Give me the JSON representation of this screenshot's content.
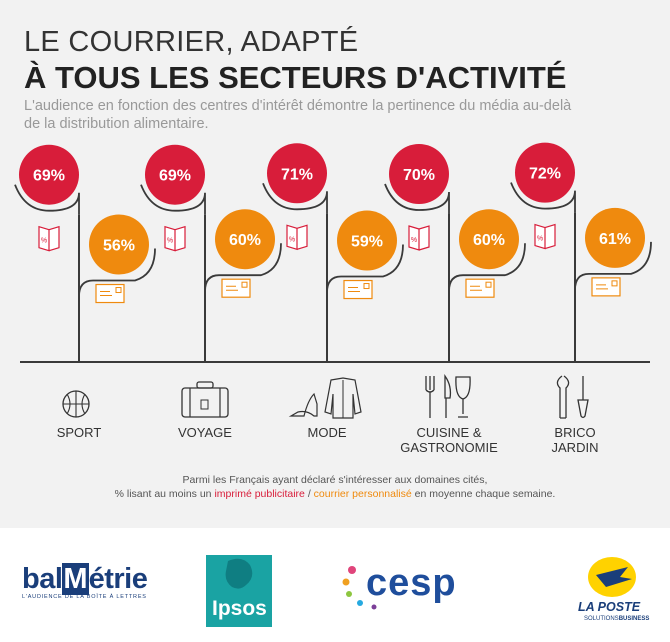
{
  "header": {
    "title_line1": "LE COURRIER, ADAPTÉ",
    "title_line2": "À TOUS LES SECTEURS D'ACTIVITÉ",
    "subtitle": "L'audience en fonction des centres d'intérêt démontre la pertinence du média au-delà de la distribution alimentaire."
  },
  "chart_data": {
    "type": "bar",
    "categories": [
      "SPORT",
      "VOYAGE",
      "MODE",
      "CUISINE & GASTRONOMIE",
      "BRICO JARDIN"
    ],
    "category_lines": [
      [
        "SPORT"
      ],
      [
        "VOYAGE"
      ],
      [
        "MODE"
      ],
      [
        "CUISINE &",
        "GASTRONOMIE"
      ],
      [
        "BRICO",
        "JARDIN"
      ]
    ],
    "series": [
      {
        "name": "imprimé publicitaire",
        "color": "#d81d3a",
        "values": [
          69,
          69,
          71,
          70,
          72
        ],
        "labels": [
          "69%",
          "69%",
          "71%",
          "70%",
          "72%"
        ]
      },
      {
        "name": "courrier personnalisé",
        "color": "#ef8a0e",
        "values": [
          56,
          60,
          59,
          60,
          61
        ],
        "labels": [
          "56%",
          "60%",
          "59%",
          "60%",
          "61%"
        ]
      }
    ],
    "category_icons": [
      "basketball-icon",
      "suitcase-icon",
      "shoe-and-jacket-icon",
      "cutlery-and-glass-icon",
      "tools-icon"
    ],
    "series_icons": [
      "flyer-icon",
      "envelope-icon"
    ],
    "flyer_mark": "%",
    "title": "LE COURRIER, ADAPTÉ À TOUS LES SECTEURS D'ACTIVITÉ",
    "ylabel": "%"
  },
  "footnote": {
    "line1": "Parmi les Français ayant déclaré s'intéresser aux domaines cités,",
    "prefix": "%  lisant au moins un ",
    "series1": "imprimé publicitaire",
    "sep": " / ",
    "series2": "courrier personnalisé",
    "suffix": "  en moyenne chaque semaine."
  },
  "logos": {
    "balmetrie": {
      "text_a": "bal",
      "text_b": "étrie",
      "tagline": "L'AUDIENCE DE LA BOÎTE À LETTRES"
    },
    "ipsos": {
      "text": "Ipsos"
    },
    "cesp": {
      "text": "cesp"
    },
    "laposte": {
      "text": "LA POSTE",
      "tagline_a": "SOLUTIONS",
      "tagline_b": "BUSINESS"
    }
  },
  "colors": {
    "red": "#d81d3a",
    "orange": "#ef8a0e",
    "line": "#3a3a3a",
    "panel": "#f2f2f2"
  }
}
